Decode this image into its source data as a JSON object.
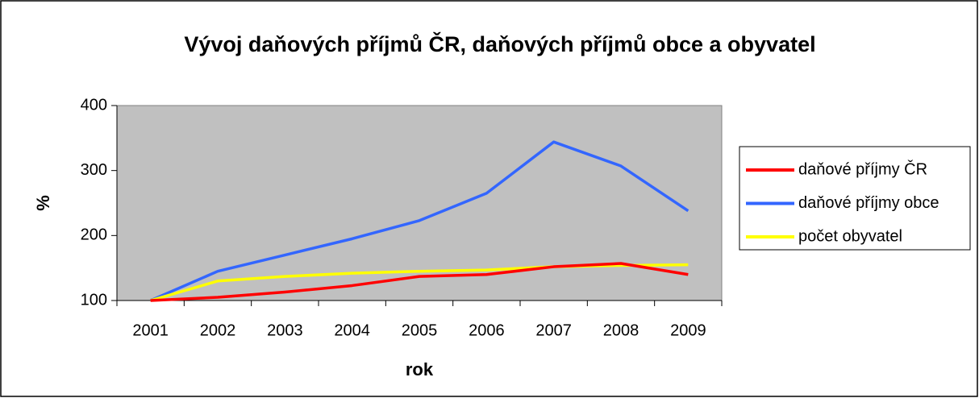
{
  "chart_data": {
    "type": "line",
    "title": "Vývoj daňových příjmů ČR, daňových příjmů obce a obyvatel",
    "x_label": "rok",
    "y_label": "%",
    "categories": [
      "2001",
      "2002",
      "2003",
      "2004",
      "2005",
      "2006",
      "2007",
      "2008",
      "2009"
    ],
    "series": [
      {
        "name": "daňové příjmy ČR",
        "color": "#ff0000",
        "values": [
          100,
          105,
          113,
          123,
          137,
          140,
          152,
          157,
          140
        ]
      },
      {
        "name": "daňové příjmy obce",
        "color": "#3366ff",
        "values": [
          100,
          145,
          170,
          195,
          223,
          265,
          344,
          307,
          238
        ]
      },
      {
        "name": "počet obyvatel",
        "color": "#ffff00",
        "values": [
          100,
          130,
          137,
          142,
          145,
          147,
          152,
          154,
          155
        ]
      }
    ],
    "ylim": [
      100,
      400
    ],
    "yticks": [
      100,
      200,
      300,
      400
    ],
    "grid": false,
    "legend": "right",
    "plot_background": "#c0c0c0"
  }
}
